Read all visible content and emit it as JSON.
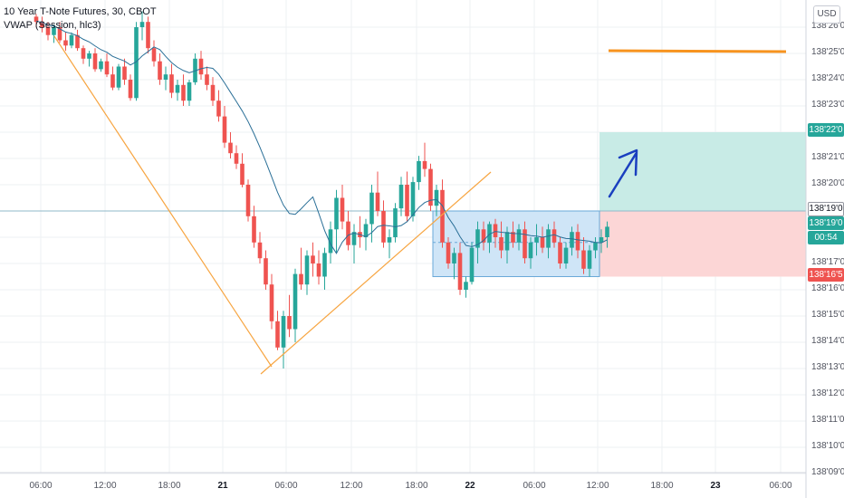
{
  "legend": {
    "title": "10 Year T-Note Futures, 30, CBOT",
    "indicator": "VWAP (Session, hlc3)"
  },
  "currency_button": "USD",
  "colors": {
    "up": "#26a69a",
    "down": "#ef5350",
    "vwap": "#2a6f97",
    "trendline": "#f7a541",
    "target_line": "#f7931e",
    "arrow": "#1a3fbf",
    "profit_zone": "#c8ebe6",
    "loss_zone": "#fcd6d6",
    "range_box": "#cfe5f7",
    "grid": "#eef0f3"
  },
  "price_axis": {
    "labels": [
      "138'26'0",
      "138'25'0",
      "138'24'0",
      "138'23'0",
      "138'22'0",
      "138'21'0",
      "138'20'0",
      "138'19'0",
      "138'18'0",
      "138'17'0",
      "138'16'0",
      "138'15'0",
      "138'14'0",
      "138'13'0",
      "138'12'0",
      "138'11'0",
      "138'10'0",
      "138'09'0"
    ],
    "tags": {
      "target": "138'22'0",
      "entry": "138'19'0",
      "last_price": "138'19'0",
      "countdown": "00:54",
      "stop": "138'16'5"
    }
  },
  "time_axis": {
    "labels": [
      "06:00",
      "12:00",
      "18:00",
      "21",
      "06:00",
      "12:00",
      "18:00",
      "22",
      "06:00",
      "12:00",
      "18:00",
      "23",
      "06:00"
    ]
  },
  "chart_data": {
    "type": "candlestick",
    "symbol": "10 Year T-Note Futures",
    "interval": "30",
    "exchange": "CBOT",
    "price_range_32nds": [
      "138'09'0",
      "138'26'0"
    ],
    "indicator": "VWAP (Session, hlc3)",
    "candles_ohlc_32nds": [
      [
        264,
        265,
        260,
        262
      ],
      [
        262,
        264,
        258,
        260
      ],
      [
        260,
        262,
        255,
        257
      ],
      [
        257,
        261,
        254,
        260
      ],
      [
        260,
        262,
        254,
        255
      ],
      [
        255,
        258,
        251,
        253
      ],
      [
        253,
        258,
        252,
        257
      ],
      [
        257,
        259,
        251,
        252
      ],
      [
        252,
        253,
        246,
        248
      ],
      [
        248,
        251,
        245,
        250
      ],
      [
        250,
        252,
        243,
        244
      ],
      [
        244,
        248,
        243,
        247
      ],
      [
        247,
        250,
        241,
        242
      ],
      [
        242,
        245,
        236,
        237
      ],
      [
        237,
        246,
        236,
        245
      ],
      [
        245,
        248,
        238,
        240
      ],
      [
        240,
        242,
        232,
        233
      ],
      [
        233,
        262,
        232,
        260
      ],
      [
        260,
        266,
        255,
        262
      ],
      [
        262,
        264,
        250,
        252
      ],
      [
        252,
        255,
        245,
        247
      ],
      [
        247,
        250,
        238,
        240
      ],
      [
        240,
        245,
        236,
        242
      ],
      [
        242,
        246,
        233,
        235
      ],
      [
        235,
        240,
        232,
        238
      ],
      [
        238,
        242,
        230,
        232
      ],
      [
        232,
        240,
        230,
        239
      ],
      [
        239,
        250,
        238,
        248
      ],
      [
        248,
        251,
        240,
        242
      ],
      [
        242,
        245,
        236,
        238
      ],
      [
        238,
        241,
        230,
        232
      ],
      [
        232,
        236,
        224,
        226
      ],
      [
        226,
        230,
        214,
        216
      ],
      [
        216,
        220,
        210,
        212
      ],
      [
        212,
        215,
        206,
        208
      ],
      [
        208,
        212,
        199,
        200
      ],
      [
        200,
        202,
        186,
        188
      ],
      [
        188,
        192,
        176,
        178
      ],
      [
        178,
        182,
        170,
        172
      ],
      [
        172,
        175,
        160,
        162
      ],
      [
        162,
        166,
        145,
        148
      ],
      [
        148,
        152,
        137,
        138
      ],
      [
        138,
        152,
        130,
        150
      ],
      [
        150,
        158,
        142,
        145
      ],
      [
        145,
        168,
        140,
        166
      ],
      [
        166,
        176,
        160,
        162
      ],
      [
        162,
        175,
        158,
        173
      ],
      [
        173,
        178,
        165,
        170
      ],
      [
        170,
        175,
        162,
        165
      ],
      [
        165,
        176,
        160,
        174
      ],
      [
        174,
        186,
        170,
        183
      ],
      [
        183,
        198,
        174,
        195
      ],
      [
        195,
        200,
        183,
        186
      ],
      [
        186,
        190,
        175,
        177
      ],
      [
        177,
        185,
        170,
        182
      ],
      [
        182,
        188,
        176,
        180
      ],
      [
        180,
        187,
        175,
        185
      ],
      [
        185,
        200,
        178,
        197
      ],
      [
        197,
        205,
        188,
        190
      ],
      [
        190,
        194,
        176,
        178
      ],
      [
        178,
        183,
        172,
        180
      ],
      [
        180,
        193,
        178,
        191
      ],
      [
        191,
        203,
        188,
        200
      ],
      [
        200,
        205,
        186,
        188
      ],
      [
        188,
        203,
        186,
        201
      ],
      [
        201,
        211,
        198,
        209
      ],
      [
        209,
        216,
        203,
        206
      ],
      [
        206,
        208,
        190,
        192
      ],
      [
        192,
        200,
        188,
        198
      ],
      [
        198,
        202,
        176,
        178
      ],
      [
        178,
        180,
        168,
        170
      ],
      [
        170,
        176,
        164,
        174
      ],
      [
        174,
        178,
        158,
        160
      ],
      [
        160,
        165,
        157,
        163
      ],
      [
        163,
        178,
        162,
        176
      ],
      [
        176,
        186,
        170,
        183
      ],
      [
        183,
        186,
        175,
        178
      ],
      [
        178,
        186,
        174,
        185
      ],
      [
        185,
        187,
        176,
        180
      ],
      [
        180,
        186,
        172,
        175
      ],
      [
        175,
        184,
        170,
        182
      ],
      [
        182,
        186,
        176,
        178
      ],
      [
        178,
        185,
        175,
        183
      ],
      [
        183,
        186,
        170,
        172
      ],
      [
        172,
        180,
        168,
        178
      ],
      [
        178,
        185,
        173,
        180
      ],
      [
        180,
        184,
        174,
        176
      ],
      [
        176,
        185,
        172,
        183
      ],
      [
        183,
        186,
        176,
        178
      ],
      [
        178,
        180,
        168,
        170
      ],
      [
        170,
        178,
        168,
        176
      ],
      [
        176,
        184,
        173,
        182
      ],
      [
        182,
        185,
        172,
        175
      ],
      [
        175,
        180,
        166,
        168
      ],
      [
        168,
        177,
        165,
        175
      ],
      [
        175,
        180,
        172,
        178
      ],
      [
        178,
        183,
        174,
        180
      ],
      [
        180,
        186,
        176,
        184
      ]
    ],
    "annotations": [
      "descending trendline",
      "ascending trendline",
      "consolidation range box",
      "long position (target / entry / stop)",
      "target level line",
      "upward arrow"
    ]
  }
}
